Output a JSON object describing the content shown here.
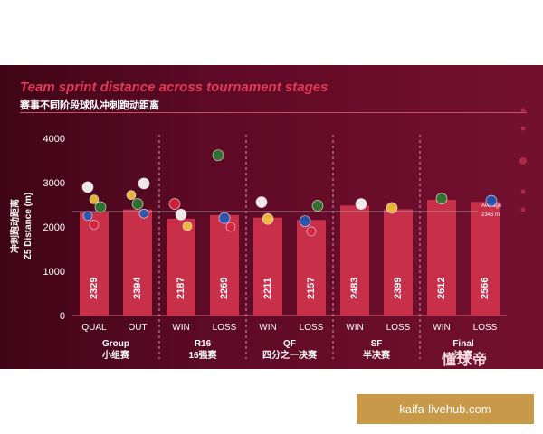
{
  "chart_data": {
    "type": "bar",
    "title": "Team sprint distance across tournament stages",
    "subtitle": "赛事不同阶段球队冲刺跑动距离",
    "ylabel_cn": "冲刺跑动距离",
    "ylabel": "Z5 Distance (m)",
    "ylim": [
      0,
      4000
    ],
    "yticks": [
      0,
      1000,
      2000,
      3000,
      4000
    ],
    "grid": false,
    "categories": [
      "QUAL",
      "OUT",
      "WIN",
      "LOSS",
      "WIN",
      "LOSS",
      "WIN",
      "LOSS",
      "WIN",
      "LOSS"
    ],
    "values": [
      2329,
      2394,
      2187,
      2269,
      2211,
      2157,
      2483,
      2399,
      2612,
      2566
    ],
    "groups": [
      {
        "name": "Group",
        "name_cn": "小组赛",
        "categories": [
          "QUAL",
          "OUT"
        ]
      },
      {
        "name": "R16",
        "name_cn": "16强赛",
        "categories": [
          "WIN",
          "LOSS"
        ]
      },
      {
        "name": "QF",
        "name_cn": "四分之一决赛",
        "categories": [
          "WIN",
          "LOSS"
        ]
      },
      {
        "name": "SF",
        "name_cn": "半决赛",
        "categories": [
          "WIN",
          "LOSS"
        ]
      },
      {
        "name": "Final",
        "name_cn": "决赛",
        "categories": [
          "WIN",
          "LOSS"
        ]
      }
    ],
    "reference_line": {
      "label": "Average",
      "value_label": "2345 m",
      "value": 2345
    }
  },
  "brand": "懂球帝",
  "watermark": "kaifa-livehub.com",
  "colors": {
    "bar": "#c8304a",
    "accent": "#e23a58",
    "text": "#ffffff",
    "watermark_bg": "#c9994a"
  }
}
